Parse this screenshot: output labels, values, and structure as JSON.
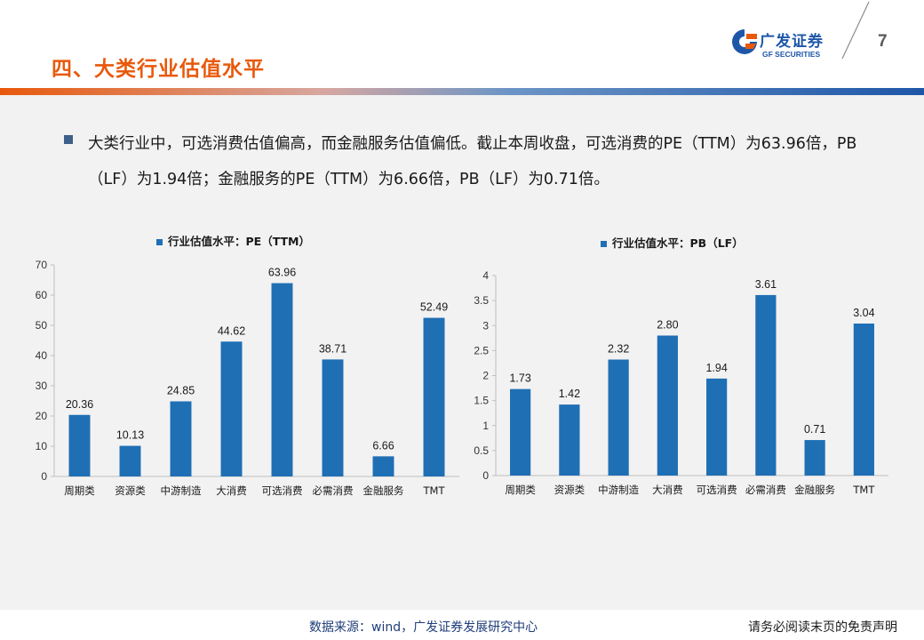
{
  "header": {
    "section_title": "四、大类行业估值水平",
    "logo_cn": "广发证券",
    "logo_en": "GF SECURITIES",
    "page_number": "7"
  },
  "summary": {
    "text": "大类行业中，可选消费估值偏高，而金融服务估值偏低。截止本周收盘，可选消费的PE（TTM）为63.96倍，PB（LF）为1.94倍；金融服务的PE（TTM）为6.66倍，PB（LF）为0.71倍。"
  },
  "footer": {
    "source": "数据来源：wind，广发证券发展研究中心",
    "disclaimer": "请务必阅读末页的免责声明"
  },
  "colors": {
    "bar": "#1f6fb5",
    "title": "#e8590c",
    "brand": "#1f57a8",
    "background": "#f2f2f2"
  },
  "chart_data": [
    {
      "type": "bar",
      "legend": "行业估值水平：PE（TTM）",
      "legend_position": "top",
      "categories": [
        "周期类",
        "资源类",
        "中游制造",
        "大消费",
        "可选消费",
        "必需消费",
        "金融服务",
        "TMT"
      ],
      "category_tick_labels": [
        "周期类",
        "资源类",
        "中游制造",
        "大消费",
        "可选消费",
        "必需消费",
        "金融服务",
        "TMT"
      ],
      "values": [
        20.36,
        10.13,
        24.85,
        44.62,
        63.96,
        38.71,
        6.66,
        52.49
      ],
      "data_labels": [
        "20.36",
        "10.13",
        "24.85",
        "44.62",
        "63.96",
        "38.71",
        "6.66",
        "52.49"
      ],
      "ylim": [
        0,
        70
      ],
      "yticks": [
        0,
        10,
        20,
        30,
        40,
        50,
        60,
        70
      ],
      "ytick_labels": [
        "0",
        "10",
        "20",
        "30",
        "40",
        "50",
        "60",
        "70"
      ],
      "grid": false
    },
    {
      "type": "bar",
      "legend": "行业估值水平：PB（LF）",
      "legend_position": "top",
      "categories": [
        "周期类",
        "资源类",
        "中游制造",
        "大消费",
        "可选消费",
        "必需消费",
        "金融服务",
        "TMT"
      ],
      "category_tick_labels": [
        "周期类",
        "资源类",
        "中游制造",
        "大消费",
        "可选消费",
        "必需消费",
        "金融服务",
        "TMT"
      ],
      "values": [
        1.73,
        1.42,
        2.32,
        2.8,
        1.94,
        3.61,
        0.71,
        3.04
      ],
      "data_labels": [
        "1.73",
        "1.42",
        "2.32",
        "2.80",
        "1.94",
        "3.61",
        "0.71",
        "3.04"
      ],
      "ylim": [
        0,
        4
      ],
      "yticks": [
        0,
        0.5,
        1,
        1.5,
        2,
        2.5,
        3,
        3.5,
        4
      ],
      "ytick_labels": [
        "0",
        "0.5",
        "1",
        "1.5",
        "2",
        "2.5",
        "3",
        "3.5",
        "4"
      ],
      "grid": false
    }
  ]
}
